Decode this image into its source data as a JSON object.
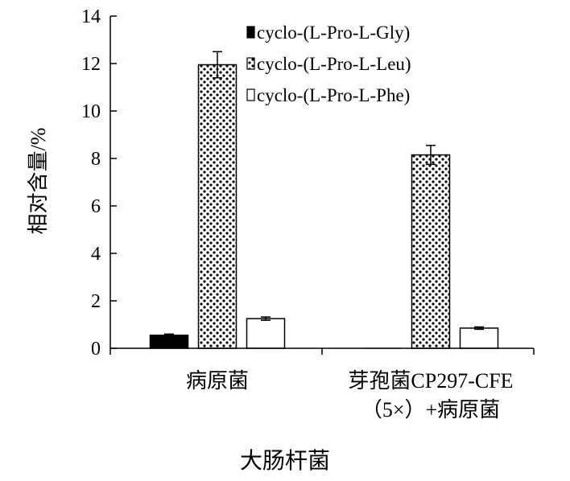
{
  "chart_data": {
    "type": "bar",
    "title": "",
    "xlabel": "大肠杆菌",
    "ylabel": "相对含量/%",
    "ylim": [
      0,
      14
    ],
    "yticks": [
      0,
      2,
      4,
      6,
      8,
      10,
      12,
      14
    ],
    "grid": false,
    "legend_position": "top-right",
    "categories": [
      "病原菌",
      "芽孢菌CP297-CFE（5×）+病原菌"
    ],
    "category_lines": [
      [
        "病原菌"
      ],
      [
        "芽孢菌CP297-CFE",
        "（5×）+病原菌"
      ]
    ],
    "series": [
      {
        "name": "cyclo-(L-Pro-L-Gly)",
        "values": [
          0.55,
          0
        ],
        "errors": [
          0.05,
          0
        ],
        "fill": "solid-black"
      },
      {
        "name": "cyclo-(L-Pro-L-Leu)",
        "values": [
          11.95,
          8.15
        ],
        "errors": [
          0.55,
          0.4
        ],
        "fill": "dotted"
      },
      {
        "name": "cyclo-(L-Pro-L-Phe)",
        "values": [
          1.25,
          0.85
        ],
        "errors": [
          0.07,
          0.05
        ],
        "fill": "white"
      }
    ]
  }
}
